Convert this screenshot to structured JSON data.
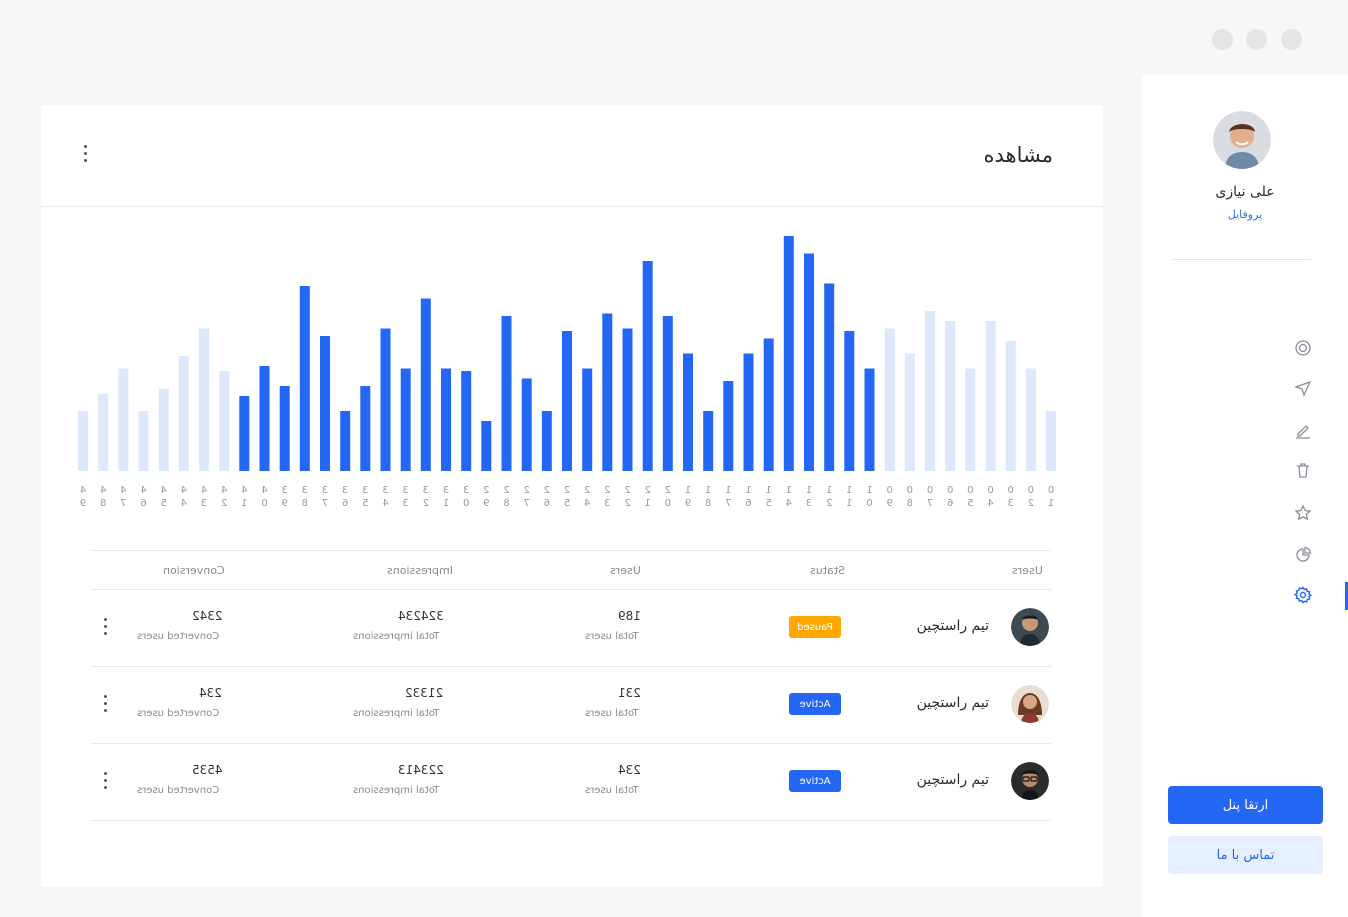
{
  "window": {
    "controls": [
      "close",
      "minimize",
      "maximize"
    ]
  },
  "sidebar": {
    "profile_name": "علی نیازی",
    "profile_link": "پروفایل",
    "nav_icons": [
      "target-icon",
      "cursor-icon",
      "edit-icon",
      "trash-icon",
      "star-icon",
      "pie-chart-icon",
      "settings-icon"
    ],
    "active_icon": "settings-icon",
    "primary_button": "ارتقا پنل",
    "secondary_button": "تماس با ما"
  },
  "card": {
    "title": "مشاهده"
  },
  "chart_data": {
    "type": "bar",
    "categories": [
      "01",
      "02",
      "03",
      "04",
      "05",
      "06",
      "07",
      "08",
      "09",
      "10",
      "11",
      "12",
      "13",
      "14",
      "15",
      "16",
      "17",
      "18",
      "19",
      "20",
      "21",
      "22",
      "23",
      "24",
      "25",
      "26",
      "27",
      "28",
      "29",
      "30",
      "31",
      "32",
      "33",
      "34",
      "35",
      "36",
      "37",
      "38",
      "39",
      "40",
      "41",
      "42",
      "43",
      "44",
      "45",
      "46",
      "47",
      "48",
      "49"
    ],
    "values": [
      24,
      41,
      52,
      60,
      41,
      60,
      64,
      47,
      57,
      41,
      56,
      75,
      87,
      94,
      53,
      47,
      36,
      24,
      47,
      62,
      84,
      57,
      63,
      41,
      56,
      24,
      37,
      62,
      20,
      40,
      41,
      69,
      41,
      57,
      34,
      24,
      54,
      74,
      34,
      42,
      30,
      40,
      57,
      46,
      33,
      24,
      41,
      31,
      24
    ],
    "highlight_range": [
      9,
      40
    ],
    "colors": {
      "active": "#2467f5",
      "inactive": "#dde8fc"
    },
    "ylim": [
      0,
      100
    ],
    "grid": false
  },
  "table": {
    "headers": {
      "users": "Users",
      "status": "Status",
      "users_count": "Users",
      "impressions": "Impressions",
      "conversion": "Conversion"
    },
    "rows": [
      {
        "name": "تیم راستچین",
        "status": "Paused",
        "status_color": "#ffa800",
        "users": "189",
        "users_sub": "Total users",
        "impressions": "324234",
        "impressions_sub": "Total impressions",
        "conversion": "2342",
        "conversion_sub": "Converted users"
      },
      {
        "name": "تیم راستچین",
        "status": "Active",
        "status_color": "#2467f5",
        "users": "231",
        "users_sub": "Total users",
        "impressions": "21332",
        "impressions_sub": "Total impressions",
        "conversion": "234",
        "conversion_sub": "Converted users"
      },
      {
        "name": "تیم راستچین",
        "status": "Active",
        "status_color": "#2467f5",
        "users": "234",
        "users_sub": "Total users",
        "impressions": "223413",
        "impressions_sub": "Total impressions",
        "conversion": "4535",
        "conversion_sub": "Converted users"
      }
    ]
  }
}
